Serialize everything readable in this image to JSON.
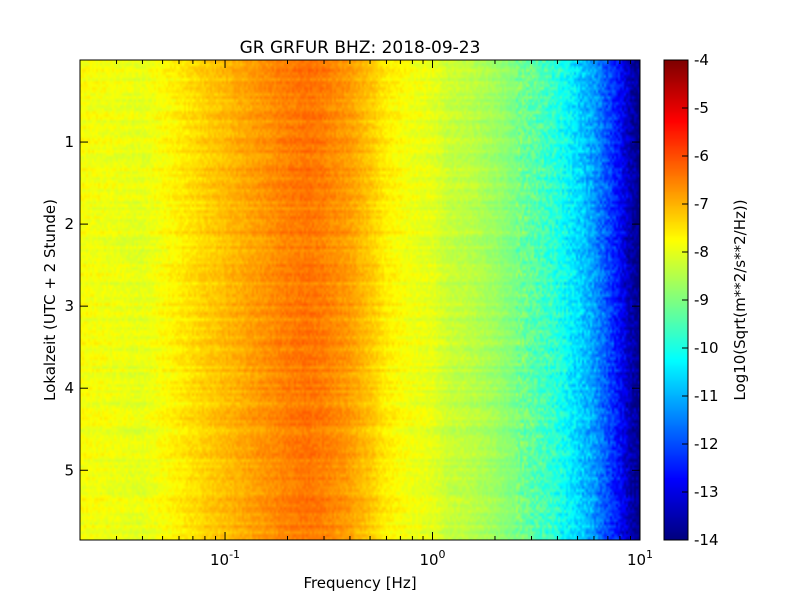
{
  "chart_data": {
    "type": "heatmap",
    "title": "GR GRFUR BHZ: 2018-09-23",
    "xlabel": "Frequency [Hz]",
    "ylabel": "Lokalzeit (UTC + 2 Stunde)",
    "x_scale": "log",
    "xlim": [
      0.02,
      10
    ],
    "ylim": [
      5.85,
      0
    ],
    "x_ticks": [
      {
        "value": 0.1,
        "base": "10",
        "exp": "-1"
      },
      {
        "value": 1,
        "base": "10",
        "exp": "0"
      },
      {
        "value": 10,
        "base": "10",
        "exp": "1"
      }
    ],
    "y_ticks": [
      1,
      2,
      3,
      4,
      5
    ],
    "colorbar": {
      "label": "Log10(Sqrt(m**2/s**2/Hz))",
      "colormap": "jet",
      "range": [
        -14,
        -4
      ],
      "ticks": [
        "-4",
        "-5",
        "-6",
        "-7",
        "-8",
        "-9",
        "-10",
        "-11",
        "-12",
        "-13",
        "-14"
      ]
    },
    "spectrum_profile": {
      "description_values_are_log10_psd_vs_frequency": true,
      "freq_hz": [
        0.02,
        0.04,
        0.06,
        0.08,
        0.1,
        0.14,
        0.2,
        0.25,
        0.3,
        0.4,
        0.5,
        0.6,
        0.8,
        1.0,
        1.2,
        1.5,
        2.0,
        3.0,
        4.0,
        5.0,
        6.0,
        7.0,
        8.0,
        9.0,
        10.0
      ],
      "level": [
        -7.8,
        -8.0,
        -7.6,
        -7.3,
        -7.1,
        -6.8,
        -6.5,
        -6.4,
        -6.5,
        -6.8,
        -7.2,
        -7.6,
        -7.9,
        -8.0,
        -8.3,
        -8.4,
        -8.7,
        -9.3,
        -9.9,
        -10.6,
        -11.2,
        -12.0,
        -12.7,
        -13.5,
        -14.0
      ]
    }
  }
}
